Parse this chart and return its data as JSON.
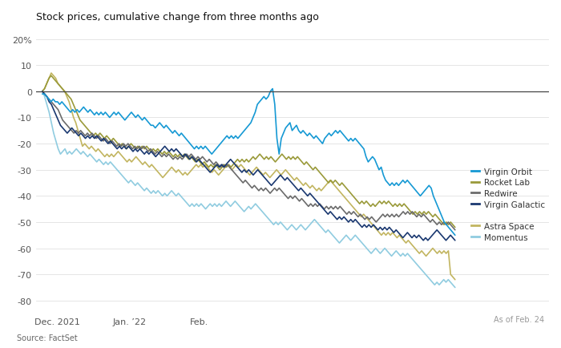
{
  "title": "Stock prices, cumulative change from three months ago",
  "source": "Source: FactSet",
  "as_of": "As of Feb. 24",
  "yticks": [
    20,
    10,
    0,
    -10,
    -20,
    -30,
    -40,
    -50,
    -60,
    -70,
    -80
  ],
  "xlabels": [
    "Dec. 2021",
    "Jan. ’22",
    "Feb."
  ],
  "xtick_positions": [
    7,
    40,
    72
  ],
  "ylim": [
    -85,
    25
  ],
  "colors": {
    "Virgin Orbit": "#1699d4",
    "Rocket Lab": "#9a9a3a",
    "Redwire": "#6b6b6b",
    "Virgin Galactic": "#1a3870",
    "Astra Space": "#c2b560",
    "Momentus": "#90cce0"
  },
  "series": {
    "Virgin Orbit": [
      -1,
      -1,
      -2,
      -3,
      -4,
      -3,
      -4,
      -4,
      -5,
      -4,
      -5,
      -6,
      -7,
      -8,
      -7,
      -8,
      -7,
      -8,
      -7,
      -6,
      -7,
      -8,
      -7,
      -8,
      -9,
      -8,
      -9,
      -8,
      -9,
      -8,
      -9,
      -10,
      -9,
      -8,
      -9,
      -8,
      -9,
      -10,
      -11,
      -10,
      -9,
      -8,
      -9,
      -10,
      -9,
      -10,
      -11,
      -10,
      -11,
      -12,
      -13,
      -13,
      -14,
      -13,
      -12,
      -13,
      -14,
      -13,
      -14,
      -15,
      -16,
      -15,
      -16,
      -17,
      -16,
      -17,
      -18,
      -19,
      -20,
      -21,
      -22,
      -21,
      -22,
      -21,
      -22,
      -21,
      -22,
      -23,
      -24,
      -23,
      -22,
      -21,
      -20,
      -19,
      -18,
      -17,
      -18,
      -17,
      -18,
      -17,
      -18,
      -17,
      -16,
      -15,
      -14,
      -13,
      -12,
      -10,
      -8,
      -5,
      -4,
      -3,
      -2,
      -3,
      -2,
      0,
      1,
      -5,
      -18,
      -24,
      -18,
      -16,
      -14,
      -13,
      -12,
      -15,
      -14,
      -13,
      -15,
      -16,
      -15,
      -16,
      -17,
      -16,
      -17,
      -18,
      -17,
      -18,
      -19,
      -20,
      -18,
      -17,
      -16,
      -17,
      -16,
      -15,
      -16,
      -15,
      -16,
      -17,
      -18,
      -19,
      -18,
      -19,
      -18,
      -19,
      -20,
      -21,
      -22,
      -25,
      -27,
      -26,
      -25,
      -26,
      -28,
      -30,
      -29,
      -32,
      -34,
      -35,
      -36,
      -35,
      -36,
      -35,
      -36,
      -35,
      -34,
      -35,
      -34,
      -35,
      -36,
      -37,
      -38,
      -39,
      -40,
      -39,
      -38,
      -37,
      -36,
      -37,
      -40,
      -42,
      -44,
      -46,
      -48,
      -50,
      -51,
      -52,
      -53,
      -54,
      -55
    ],
    "Rocket Lab": [
      0,
      1,
      3,
      5,
      6,
      5,
      4,
      3,
      2,
      1,
      0,
      -1,
      -2,
      -3,
      -5,
      -7,
      -9,
      -11,
      -12,
      -13,
      -14,
      -15,
      -16,
      -17,
      -16,
      -17,
      -16,
      -17,
      -18,
      -17,
      -18,
      -19,
      -18,
      -19,
      -20,
      -21,
      -20,
      -21,
      -22,
      -21,
      -20,
      -21,
      -22,
      -21,
      -22,
      -21,
      -22,
      -21,
      -22,
      -23,
      -22,
      -23,
      -22,
      -23,
      -24,
      -23,
      -24,
      -23,
      -24,
      -25,
      -24,
      -25,
      -24,
      -25,
      -24,
      -25,
      -26,
      -25,
      -26,
      -27,
      -26,
      -27,
      -28,
      -27,
      -28,
      -29,
      -28,
      -29,
      -28,
      -29,
      -30,
      -29,
      -28,
      -29,
      -28,
      -29,
      -28,
      -27,
      -26,
      -27,
      -26,
      -27,
      -26,
      -27,
      -26,
      -25,
      -26,
      -25,
      -24,
      -25,
      -26,
      -25,
      -26,
      -25,
      -26,
      -27,
      -26,
      -25,
      -24,
      -25,
      -26,
      -25,
      -26,
      -25,
      -26,
      -25,
      -26,
      -27,
      -28,
      -27,
      -28,
      -29,
      -30,
      -29,
      -30,
      -31,
      -32,
      -33,
      -34,
      -35,
      -34,
      -35,
      -34,
      -35,
      -36,
      -35,
      -36,
      -37,
      -38,
      -39,
      -40,
      -41,
      -42,
      -43,
      -42,
      -43,
      -42,
      -43,
      -44,
      -43,
      -44,
      -43,
      -42,
      -43,
      -42,
      -43,
      -42,
      -43,
      -44,
      -43,
      -44,
      -43,
      -44,
      -43,
      -44,
      -45,
      -46,
      -47,
      -46,
      -47,
      -46,
      -47,
      -46,
      -47,
      -46,
      -47,
      -48,
      -47,
      -48,
      -49,
      -50,
      -51,
      -50,
      -51,
      -50,
      -51,
      -52
    ],
    "Redwire": [
      0,
      -1,
      -2,
      -3,
      -4,
      -5,
      -6,
      -7,
      -9,
      -11,
      -12,
      -13,
      -14,
      -15,
      -16,
      -15,
      -16,
      -15,
      -16,
      -17,
      -16,
      -17,
      -16,
      -17,
      -18,
      -17,
      -18,
      -19,
      -18,
      -19,
      -20,
      -19,
      -20,
      -21,
      -20,
      -21,
      -20,
      -21,
      -20,
      -21,
      -22,
      -21,
      -22,
      -21,
      -22,
      -21,
      -22,
      -23,
      -22,
      -23,
      -24,
      -23,
      -24,
      -25,
      -24,
      -25,
      -24,
      -25,
      -26,
      -25,
      -26,
      -25,
      -26,
      -25,
      -24,
      -25,
      -24,
      -25,
      -26,
      -25,
      -26,
      -25,
      -26,
      -27,
      -26,
      -27,
      -28,
      -27,
      -28,
      -29,
      -28,
      -29,
      -28,
      -29,
      -30,
      -31,
      -32,
      -33,
      -34,
      -35,
      -34,
      -35,
      -36,
      -37,
      -36,
      -37,
      -38,
      -37,
      -38,
      -37,
      -38,
      -39,
      -38,
      -37,
      -38,
      -37,
      -38,
      -39,
      -40,
      -41,
      -40,
      -41,
      -40,
      -41,
      -42,
      -41,
      -42,
      -43,
      -44,
      -43,
      -44,
      -43,
      -44,
      -43,
      -44,
      -45,
      -44,
      -45,
      -44,
      -45,
      -44,
      -45,
      -44,
      -45,
      -46,
      -47,
      -46,
      -47,
      -46,
      -47,
      -48,
      -47,
      -48,
      -49,
      -48,
      -49,
      -48,
      -49,
      -50,
      -49,
      -48,
      -47,
      -48,
      -47,
      -48,
      -47,
      -48,
      -47,
      -48,
      -47,
      -46,
      -47,
      -46,
      -47,
      -46,
      -47,
      -48,
      -47,
      -48,
      -47,
      -48,
      -49,
      -50,
      -49,
      -50,
      -51,
      -50,
      -51,
      -50,
      -51,
      -50,
      -51,
      -52,
      -53
    ],
    "Virgin Galactic": [
      0,
      -1,
      -2,
      -4,
      -5,
      -7,
      -9,
      -11,
      -13,
      -14,
      -15,
      -16,
      -15,
      -14,
      -15,
      -16,
      -17,
      -16,
      -17,
      -18,
      -17,
      -18,
      -17,
      -18,
      -17,
      -18,
      -19,
      -18,
      -19,
      -20,
      -19,
      -20,
      -21,
      -22,
      -21,
      -22,
      -21,
      -22,
      -21,
      -22,
      -23,
      -22,
      -23,
      -22,
      -23,
      -24,
      -23,
      -24,
      -23,
      -24,
      -25,
      -24,
      -23,
      -22,
      -21,
      -22,
      -23,
      -22,
      -23,
      -22,
      -23,
      -24,
      -25,
      -24,
      -25,
      -26,
      -25,
      -26,
      -27,
      -26,
      -27,
      -28,
      -29,
      -30,
      -31,
      -30,
      -29,
      -28,
      -29,
      -28,
      -29,
      -28,
      -27,
      -26,
      -27,
      -28,
      -29,
      -30,
      -31,
      -30,
      -31,
      -30,
      -31,
      -32,
      -31,
      -30,
      -31,
      -32,
      -33,
      -34,
      -35,
      -36,
      -35,
      -34,
      -33,
      -32,
      -33,
      -34,
      -33,
      -34,
      -35,
      -36,
      -37,
      -38,
      -37,
      -38,
      -39,
      -40,
      -39,
      -40,
      -41,
      -42,
      -43,
      -44,
      -45,
      -46,
      -47,
      -46,
      -47,
      -48,
      -49,
      -48,
      -49,
      -48,
      -49,
      -50,
      -49,
      -50,
      -49,
      -50,
      -51,
      -52,
      -51,
      -52,
      -51,
      -52,
      -51,
      -52,
      -53,
      -52,
      -53,
      -52,
      -53,
      -52,
      -53,
      -54,
      -53,
      -54,
      -55,
      -56,
      -55,
      -54,
      -55,
      -56,
      -55,
      -56,
      -55,
      -56,
      -57,
      -56,
      -57,
      -56,
      -55,
      -54,
      -53,
      -54,
      -55,
      -56,
      -57,
      -56,
      -55,
      -56,
      -57
    ],
    "Astra Space": [
      0,
      1,
      3,
      5,
      7,
      6,
      5,
      3,
      2,
      1,
      0,
      -2,
      -4,
      -7,
      -10,
      -12,
      -15,
      -18,
      -21,
      -20,
      -21,
      -22,
      -21,
      -22,
      -23,
      -22,
      -23,
      -24,
      -25,
      -24,
      -25,
      -24,
      -25,
      -24,
      -23,
      -24,
      -25,
      -26,
      -27,
      -26,
      -27,
      -26,
      -25,
      -26,
      -27,
      -28,
      -27,
      -28,
      -29,
      -28,
      -29,
      -30,
      -31,
      -32,
      -33,
      -32,
      -31,
      -30,
      -29,
      -30,
      -31,
      -30,
      -31,
      -32,
      -31,
      -32,
      -31,
      -30,
      -29,
      -28,
      -29,
      -28,
      -29,
      -28,
      -29,
      -30,
      -31,
      -30,
      -31,
      -32,
      -31,
      -30,
      -29,
      -28,
      -29,
      -30,
      -29,
      -28,
      -29,
      -28,
      -29,
      -30,
      -31,
      -32,
      -31,
      -30,
      -29,
      -30,
      -31,
      -32,
      -31,
      -32,
      -33,
      -32,
      -31,
      -30,
      -31,
      -32,
      -31,
      -30,
      -31,
      -32,
      -33,
      -34,
      -33,
      -34,
      -35,
      -36,
      -35,
      -36,
      -37,
      -36,
      -37,
      -38,
      -37,
      -38,
      -37,
      -36,
      -35,
      -34,
      -35,
      -36,
      -37,
      -38,
      -39,
      -40,
      -41,
      -42,
      -43,
      -44,
      -45,
      -46,
      -47,
      -48,
      -47,
      -48,
      -49,
      -50,
      -51,
      -52,
      -53,
      -54,
      -55,
      -54,
      -55,
      -54,
      -55,
      -54,
      -55,
      -56,
      -55,
      -56,
      -57,
      -58,
      -57,
      -58,
      -59,
      -60,
      -61,
      -62,
      -61,
      -62,
      -63,
      -62,
      -61,
      -60,
      -61,
      -62,
      -61,
      -62,
      -61,
      -62,
      -61,
      -70,
      -71,
      -72
    ],
    "Momentus": [
      0,
      -2,
      -5,
      -8,
      -12,
      -16,
      -19,
      -22,
      -24,
      -23,
      -22,
      -24,
      -23,
      -24,
      -23,
      -22,
      -23,
      -24,
      -23,
      -24,
      -25,
      -24,
      -25,
      -26,
      -27,
      -26,
      -27,
      -28,
      -27,
      -28,
      -27,
      -28,
      -29,
      -30,
      -31,
      -32,
      -33,
      -34,
      -35,
      -34,
      -35,
      -36,
      -35,
      -36,
      -37,
      -38,
      -37,
      -38,
      -39,
      -38,
      -39,
      -38,
      -39,
      -40,
      -39,
      -40,
      -39,
      -38,
      -39,
      -40,
      -39,
      -40,
      -41,
      -42,
      -43,
      -44,
      -43,
      -44,
      -43,
      -44,
      -43,
      -44,
      -45,
      -44,
      -43,
      -44,
      -43,
      -44,
      -43,
      -44,
      -43,
      -42,
      -43,
      -44,
      -43,
      -42,
      -43,
      -44,
      -45,
      -46,
      -45,
      -44,
      -45,
      -44,
      -43,
      -44,
      -45,
      -46,
      -47,
      -48,
      -49,
      -50,
      -51,
      -50,
      -51,
      -50,
      -51,
      -52,
      -53,
      -52,
      -51,
      -52,
      -53,
      -52,
      -51,
      -52,
      -53,
      -52,
      -51,
      -50,
      -49,
      -50,
      -51,
      -52,
      -53,
      -54,
      -53,
      -54,
      -55,
      -56,
      -57,
      -58,
      -57,
      -56,
      -55,
      -56,
      -57,
      -56,
      -55,
      -56,
      -57,
      -58,
      -59,
      -60,
      -61,
      -62,
      -61,
      -60,
      -61,
      -62,
      -61,
      -60,
      -61,
      -62,
      -63,
      -62,
      -61,
      -62,
      -63,
      -62,
      -63,
      -62,
      -63,
      -64,
      -65,
      -66,
      -67,
      -68,
      -69,
      -70,
      -71,
      -72,
      -73,
      -74,
      -73,
      -74,
      -73,
      -72,
      -73,
      -72,
      -73,
      -74,
      -75
    ]
  }
}
